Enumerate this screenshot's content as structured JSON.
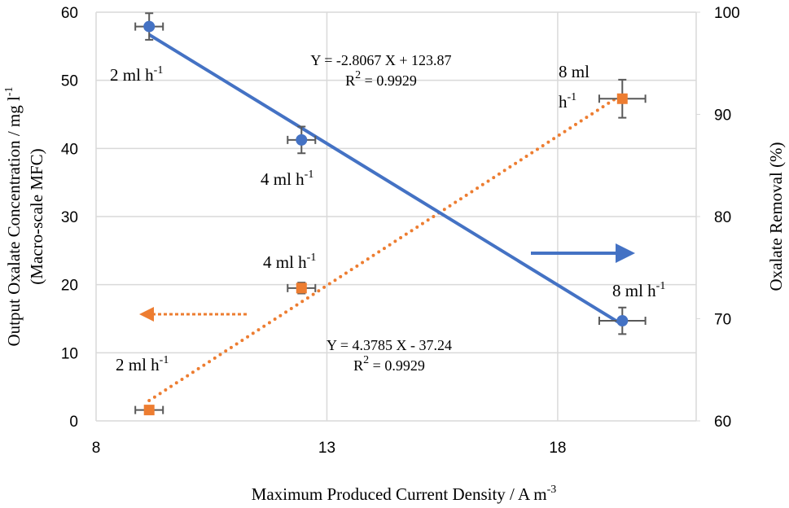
{
  "chart_data": {
    "type": "scatter",
    "x_label": {
      "text": "Maximum Produced Current Density / A m",
      "sup": "-3"
    },
    "y_label": [
      {
        "text": "Output Oxalate Concentration / mg l",
        "sup": "-1"
      },
      {
        "text": "(Macro-scale MFC)"
      }
    ],
    "y2_label": {
      "text": "Oxalate Removal (%)"
    },
    "xlim": [
      8,
      21
    ],
    "xticks": [
      8,
      13,
      18
    ],
    "ylim": [
      0,
      60
    ],
    "yticks": [
      0,
      10,
      20,
      30,
      40,
      50,
      60
    ],
    "y2lim": [
      60,
      100
    ],
    "y2ticks": [
      60,
      70,
      80,
      90,
      100
    ],
    "grid": true,
    "series": [
      {
        "name": "Output Oxalate Concentration",
        "color": "#ed7d31",
        "marker": "square",
        "line": "dotted",
        "x": [
          9.15,
          12.45,
          19.4
        ],
        "values": [
          1.6,
          19.5,
          47.3
        ],
        "x_errors": [
          0.3,
          0.3,
          0.5
        ],
        "y_errors": [
          0.6,
          0.8,
          2.8
        ]
      },
      {
        "name": "Oxalate Removal",
        "color": "#4472c4",
        "marker": "circle",
        "line": "solid",
        "axis": "y2",
        "x": [
          9.15,
          12.45,
          19.4
        ],
        "values": [
          98.6,
          87.5,
          69.8
        ],
        "x_errors": [
          0.3,
          0.3,
          0.5
        ],
        "y_errors": [
          1.3,
          1.3,
          1.3
        ]
      }
    ],
    "annotations": [
      {
        "text": "2 ml h",
        "sup": "-1"
      },
      {
        "text": "4 ml h",
        "sup": "-1"
      },
      {
        "text": "8 ml h",
        "sup": "-1"
      },
      {
        "text": "2 ml h",
        "sup": "-1"
      },
      {
        "text": "4 ml h",
        "sup": "-1"
      },
      {
        "text": "8 ml"
      },
      {
        "text": "h",
        "sup": "-1"
      },
      {
        "text": "Y = -2.8067 X + 123.87"
      },
      {
        "text": "R",
        "sup": "2",
        "post": " = 0.9929"
      },
      {
        "text": "Y = 4.3785 X - 37.24"
      },
      {
        "text": "R",
        "sup": "2",
        "post": " = 0.9929"
      }
    ]
  }
}
